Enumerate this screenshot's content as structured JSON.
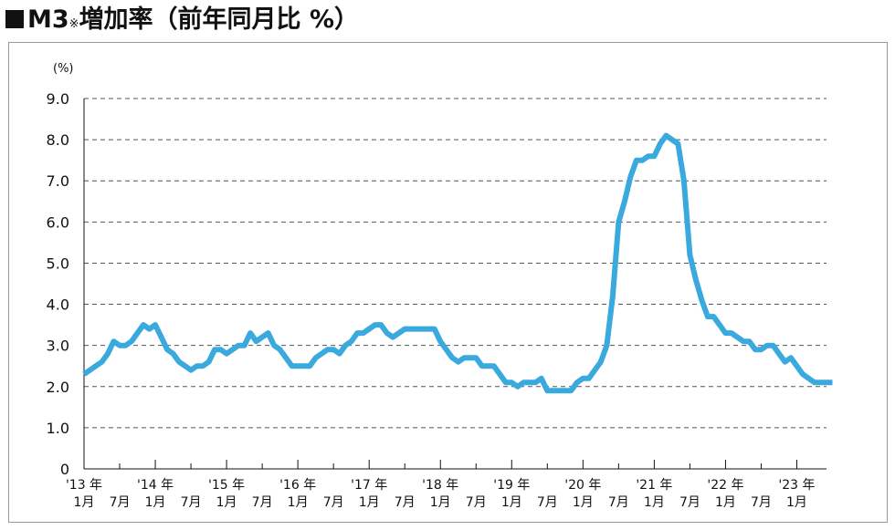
{
  "title": {
    "prefix": "M3",
    "mark": "※",
    "text": "増加率（前年同月比 %）"
  },
  "chart_data": {
    "type": "line",
    "title": "M3※増加率（前年同月比 %）",
    "unit_label": "(%)",
    "ylim": [
      0,
      9
    ],
    "yticks": [
      "0",
      "1.0",
      "2.0",
      "3.0",
      "4.0",
      "5.0",
      "6.0",
      "7.0",
      "8.0",
      "9.0"
    ],
    "grid": "horizontal dashed",
    "line_color": "#3aa9de",
    "x_tick_labels": [
      {
        "month": 0,
        "year": "'13 年",
        "mon": "1月"
      },
      {
        "month": 6,
        "mon": "7月"
      },
      {
        "month": 12,
        "year": "'14 年",
        "mon": "1月"
      },
      {
        "month": 18,
        "mon": "7月"
      },
      {
        "month": 24,
        "year": "'15 年",
        "mon": "1月"
      },
      {
        "month": 30,
        "mon": "7月"
      },
      {
        "month": 36,
        "year": "'16 年",
        "mon": "1月"
      },
      {
        "month": 42,
        "mon": "7月"
      },
      {
        "month": 48,
        "year": "'17 年",
        "mon": "1月"
      },
      {
        "month": 54,
        "mon": "7月"
      },
      {
        "month": 60,
        "year": "'18 年",
        "mon": "1月"
      },
      {
        "month": 66,
        "mon": "7月"
      },
      {
        "month": 72,
        "year": "'19 年",
        "mon": "1月"
      },
      {
        "month": 78,
        "mon": "7月"
      },
      {
        "month": 84,
        "year": "'20 年",
        "mon": "1月"
      },
      {
        "month": 90,
        "mon": "7月"
      },
      {
        "month": 96,
        "year": "'21 年",
        "mon": "1月"
      },
      {
        "month": 102,
        "mon": "7月"
      },
      {
        "month": 108,
        "year": "'22 年",
        "mon": "1月"
      },
      {
        "month": 114,
        "mon": "7月"
      },
      {
        "month": 120,
        "year": "'23 年",
        "mon": "1月"
      }
    ],
    "x_range": [
      0,
      125
    ],
    "series": [
      {
        "values": [
          2.3,
          2.4,
          2.5,
          2.6,
          2.8,
          3.1,
          3.0,
          3.0,
          3.1,
          3.3,
          3.5,
          3.4,
          3.5,
          3.2,
          2.9,
          2.8,
          2.6,
          2.5,
          2.4,
          2.5,
          2.5,
          2.6,
          2.9,
          2.9,
          2.8,
          2.9,
          3.0,
          3.0,
          3.3,
          3.1,
          3.2,
          3.3,
          3.0,
          2.9,
          2.7,
          2.5,
          2.5,
          2.5,
          2.5,
          2.7,
          2.8,
          2.9,
          2.9,
          2.8,
          3.0,
          3.1,
          3.3,
          3.3,
          3.4,
          3.5,
          3.5,
          3.3,
          3.2,
          3.3,
          3.4,
          3.4,
          3.4,
          3.4,
          3.4,
          3.4,
          3.1,
          2.9,
          2.7,
          2.6,
          2.7,
          2.7,
          2.7,
          2.5,
          2.5,
          2.5,
          2.3,
          2.1,
          2.1,
          2.0,
          2.1,
          2.1,
          2.1,
          2.2,
          1.9,
          1.9,
          1.9,
          1.9,
          1.9,
          2.1,
          2.2,
          2.2,
          2.4,
          2.6,
          3.0,
          4.2,
          6.0,
          6.5,
          7.1,
          7.5,
          7.5,
          7.6,
          7.6,
          7.9,
          8.1,
          8.0,
          7.9,
          7.0,
          5.2,
          4.6,
          4.1,
          3.7,
          3.7,
          3.5,
          3.3,
          3.3,
          3.2,
          3.1,
          3.1,
          2.9,
          2.9,
          3.0,
          3.0,
          2.8,
          2.6,
          2.7,
          2.5,
          2.3,
          2.2,
          2.1,
          2.1,
          2.1,
          2.1
        ]
      }
    ]
  }
}
